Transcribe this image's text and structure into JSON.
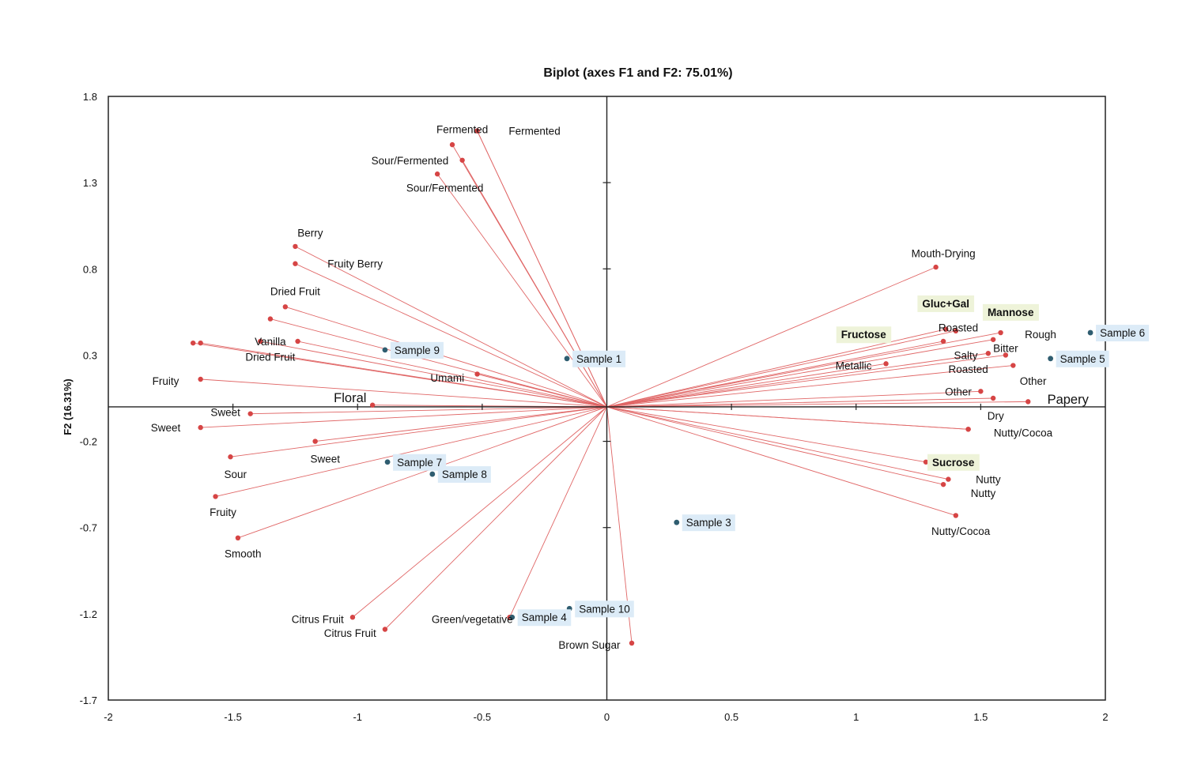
{
  "chart_data": {
    "type": "scatter",
    "title": "Biplot (axes F1 and F2: 75.01%)",
    "xlabel": "",
    "ylabel": "F2 (16.31%)",
    "xlim": [
      -2,
      2
    ],
    "ylim": [
      -1.7,
      1.8
    ],
    "xticks": [
      "-2",
      "-1.5",
      "-1",
      "-0.5",
      "0",
      "0.5",
      "1",
      "1.5",
      "2"
    ],
    "yticks": [
      "1.8",
      "1.3",
      "0.8",
      "0.3",
      "-0.2",
      "-0.7",
      "-1.2",
      "-1.7"
    ],
    "colors": {
      "variable": "#d64545",
      "observation": "#2f5d70",
      "line": "#e06666",
      "axis": "#222222"
    },
    "variables": [
      {
        "label": "Fermented",
        "x": -0.52,
        "y": 1.6,
        "lx": -0.58,
        "ly": 1.61,
        "style": "plain"
      },
      {
        "label": "Fermented",
        "x": -0.52,
        "y": 1.6,
        "lx": -0.29,
        "ly": 1.6,
        "style": "plain"
      },
      {
        "label": "Sour/Fermented",
        "x": -0.62,
        "y": 1.52,
        "lx": -0.79,
        "ly": 1.43,
        "style": "plain"
      },
      {
        "label": "Sour/Fermented",
        "x": -0.58,
        "y": 1.43,
        "lx": -0.65,
        "ly": 1.27,
        "style": "plain"
      },
      {
        "label": "",
        "x": -0.68,
        "y": 1.35,
        "lx": 0,
        "ly": 0,
        "style": "plain"
      },
      {
        "label": "Berry",
        "x": -1.25,
        "y": 0.93,
        "lx": -1.19,
        "ly": 1.01,
        "style": "plain"
      },
      {
        "label": "Fruity Berry",
        "x": -1.25,
        "y": 0.83,
        "lx": -1.01,
        "ly": 0.83,
        "style": "plain"
      },
      {
        "label": "Dried Fruit",
        "x": -1.29,
        "y": 0.58,
        "lx": -1.25,
        "ly": 0.67,
        "style": "plain"
      },
      {
        "label": "",
        "x": -1.35,
        "y": 0.51,
        "lx": 0,
        "ly": 0,
        "style": "plain"
      },
      {
        "label": "Vanilla",
        "x": -1.24,
        "y": 0.38,
        "lx": -1.35,
        "ly": 0.38,
        "style": "plain"
      },
      {
        "label": "Dried Fruit",
        "x": -1.39,
        "y": 0.38,
        "lx": -1.35,
        "ly": 0.29,
        "style": "plain"
      },
      {
        "label": "",
        "x": -1.66,
        "y": 0.37,
        "lx": 0,
        "ly": 0,
        "style": "plain"
      },
      {
        "label": "",
        "x": -1.63,
        "y": 0.37,
        "lx": 0,
        "ly": 0,
        "style": "plain"
      },
      {
        "label": "Umami",
        "x": -0.52,
        "y": 0.19,
        "lx": -0.64,
        "ly": 0.17,
        "style": "plain"
      },
      {
        "label": "Fruity",
        "x": -1.63,
        "y": 0.16,
        "lx": -1.77,
        "ly": 0.15,
        "style": "plain"
      },
      {
        "label": "Floral",
        "x": -0.94,
        "y": 0.01,
        "lx": -1.03,
        "ly": 0.05,
        "style": "large"
      },
      {
        "label": "Sweet",
        "x": -1.43,
        "y": -0.04,
        "lx": -1.53,
        "ly": -0.03,
        "style": "plain"
      },
      {
        "label": "Sweet",
        "x": -1.63,
        "y": -0.12,
        "lx": -1.77,
        "ly": -0.12,
        "style": "plain"
      },
      {
        "label": "Sweet",
        "x": -1.17,
        "y": -0.2,
        "lx": -1.13,
        "ly": -0.3,
        "style": "plain"
      },
      {
        "label": "Sour",
        "x": -1.51,
        "y": -0.29,
        "lx": -1.49,
        "ly": -0.39,
        "style": "plain"
      },
      {
        "label": "Fruity",
        "x": -1.57,
        "y": -0.52,
        "lx": -1.54,
        "ly": -0.61,
        "style": "plain"
      },
      {
        "label": "Smooth",
        "x": -1.48,
        "y": -0.76,
        "lx": -1.46,
        "ly": -0.85,
        "style": "plain"
      },
      {
        "label": "Citrus Fruit",
        "x": -1.02,
        "y": -1.22,
        "lx": -1.16,
        "ly": -1.23,
        "style": "plain"
      },
      {
        "label": "Citrus Fruit",
        "x": -0.89,
        "y": -1.29,
        "lx": -1.03,
        "ly": -1.31,
        "style": "plain"
      },
      {
        "label": "Green/vegetative",
        "x": -0.39,
        "y": -1.22,
        "lx": -0.54,
        "ly": -1.23,
        "style": "plain"
      },
      {
        "label": "Brown Sugar",
        "x": 0.1,
        "y": -1.37,
        "lx": -0.07,
        "ly": -1.38,
        "style": "plain"
      },
      {
        "label": "Mouth-Drying",
        "x": 1.32,
        "y": 0.81,
        "lx": 1.35,
        "ly": 0.89,
        "style": "plain"
      },
      {
        "label": "Gluc+Gal",
        "x": 1.36,
        "y": 0.45,
        "lx": 1.36,
        "ly": 0.6,
        "style": "sugar"
      },
      {
        "label": "Mannose",
        "x": 1.58,
        "y": 0.43,
        "lx": 1.62,
        "ly": 0.55,
        "style": "sugar"
      },
      {
        "label": "Roasted",
        "x": 1.4,
        "y": 0.44,
        "lx": 1.41,
        "ly": 0.46,
        "style": "plain"
      },
      {
        "label": "Rough",
        "x": 1.55,
        "y": 0.39,
        "lx": 1.74,
        "ly": 0.42,
        "style": "plain"
      },
      {
        "label": "Fructose",
        "x": 1.35,
        "y": 0.38,
        "lx": 1.03,
        "ly": 0.42,
        "style": "sugar"
      },
      {
        "label": "Bitter",
        "x": 1.53,
        "y": 0.31,
        "lx": 1.6,
        "ly": 0.34,
        "style": "plain"
      },
      {
        "label": "Salty",
        "x": 1.6,
        "y": 0.3,
        "lx": 1.44,
        "ly": 0.3,
        "style": "plain"
      },
      {
        "label": "Metallic",
        "x": 1.12,
        "y": 0.25,
        "lx": 0.99,
        "ly": 0.24,
        "style": "plain"
      },
      {
        "label": "Roasted",
        "x": 1.63,
        "y": 0.24,
        "lx": 1.45,
        "ly": 0.22,
        "style": "plain"
      },
      {
        "label": "Other",
        "x": 1.5,
        "y": 0.09,
        "lx": 1.41,
        "ly": 0.09,
        "style": "plain"
      },
      {
        "label": "Other",
        "x": 1.55,
        "y": 0.05,
        "lx": 1.71,
        "ly": 0.15,
        "style": "plain"
      },
      {
        "label": "Papery",
        "x": 1.69,
        "y": 0.03,
        "lx": 1.85,
        "ly": 0.04,
        "style": "large"
      },
      {
        "label": "Dry",
        "x": 1.45,
        "y": -0.13,
        "lx": 1.56,
        "ly": -0.05,
        "style": "plain"
      },
      {
        "label": "Nutty/Cocoa",
        "x": 1.45,
        "y": -0.13,
        "lx": 1.67,
        "ly": -0.15,
        "style": "plain"
      },
      {
        "label": "Sucrose",
        "x": 1.28,
        "y": -0.32,
        "lx": 1.39,
        "ly": -0.32,
        "style": "sugar"
      },
      {
        "label": "Nutty",
        "x": 1.37,
        "y": -0.42,
        "lx": 1.53,
        "ly": -0.42,
        "style": "plain"
      },
      {
        "label": "Nutty",
        "x": 1.35,
        "y": -0.45,
        "lx": 1.51,
        "ly": -0.5,
        "style": "plain"
      },
      {
        "label": "Nutty/Cocoa",
        "x": 1.4,
        "y": -0.63,
        "lx": 1.42,
        "ly": -0.72,
        "style": "plain"
      }
    ],
    "observations": [
      {
        "label": "Sample 1",
        "x": -0.16,
        "y": 0.28
      },
      {
        "label": "Sample 3",
        "x": 0.28,
        "y": -0.67
      },
      {
        "label": "Sample 4",
        "x": -0.38,
        "y": -1.22
      },
      {
        "label": "Sample 5",
        "x": 1.78,
        "y": 0.28
      },
      {
        "label": "Sample 6",
        "x": 1.94,
        "y": 0.43
      },
      {
        "label": "Sample 7",
        "x": -0.88,
        "y": -0.32
      },
      {
        "label": "Sample 8",
        "x": -0.7,
        "y": -0.39
      },
      {
        "label": "Sample 9",
        "x": -0.89,
        "y": 0.33
      },
      {
        "label": "Sample 10",
        "x": -0.15,
        "y": -1.17
      }
    ]
  }
}
